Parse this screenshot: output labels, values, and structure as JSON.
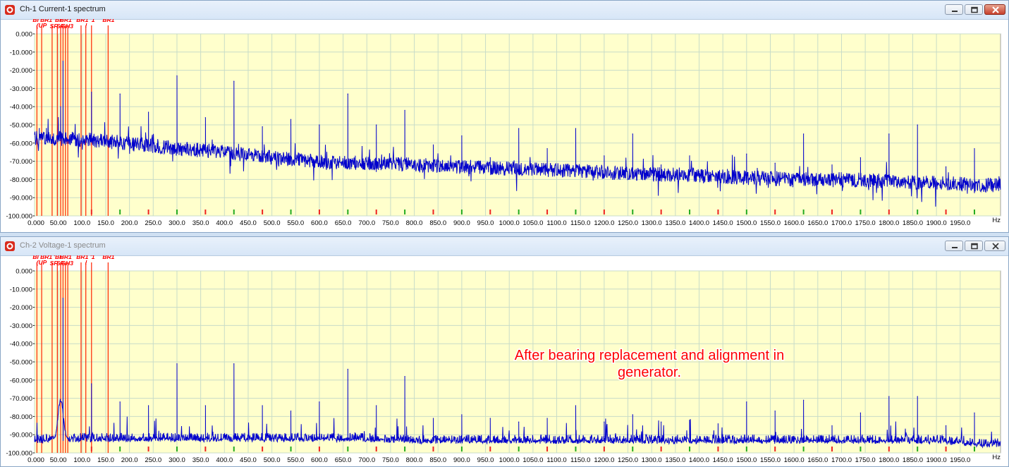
{
  "windows": [
    {
      "title": "Ch-1 Current-1 spectrum",
      "active": true,
      "controls": {
        "minimize_icon": "minimize-icon",
        "maximize_icon": "maximize-icon",
        "close_icon": "close-icon"
      }
    },
    {
      "title": "Ch-2 Voltage-1 spectrum",
      "active": false,
      "controls": {
        "minimize_icon": "minimize-icon",
        "maximize_icon": "maximize-icon",
        "close_icon": "close-icon"
      }
    }
  ],
  "annotation": {
    "line1": "After bearing replacement and alignment in",
    "line2": "generator."
  },
  "colors": {
    "plot_background": "#ffffcc",
    "trace": "#0000cc",
    "grid": "#c8dcc8",
    "marker_lines": "#ff2200",
    "marker_labels": "#ff0000",
    "tick_red": "#ee2222",
    "tick_green": "#22aa22",
    "annotation": "#ff0000"
  },
  "chart_data": [
    {
      "type": "line",
      "name": "Ch-1 Current-1 spectrum",
      "xlabel": "Hz",
      "ylabel": "",
      "xlim": [
        0,
        2035
      ],
      "ylim": [
        -100,
        0
      ],
      "y_ticks": [
        "0.000",
        "-10.000",
        "-20.000",
        "-30.000",
        "-40.000",
        "-50.000",
        "-60.000",
        "-70.000",
        "-80.000",
        "-90.000",
        "-100.000"
      ],
      "x_ticks": [
        "0.000",
        "50.00",
        "100.0",
        "150.0",
        "200.0",
        "250.0",
        "300.0",
        "350.0",
        "400.0",
        "450.0",
        "500.0",
        "550.0",
        "600.0",
        "650.0",
        "700.0",
        "750.0",
        "800.0",
        "850.0",
        "900.0",
        "950.0",
        "1000.0",
        "1050.0",
        "1100.0",
        "1150.0",
        "1200.0",
        "1250.0",
        "1300.0",
        "1350.0",
        "1400.0",
        "1450.0",
        "1500.0",
        "1550.0",
        "1600.0",
        "1650.0",
        "1700.0",
        "1750.0",
        "1800.0",
        "1850.0",
        "1900.0",
        "1950.0"
      ],
      "grid": true,
      "marker_labels": [
        "BI",
        "BR1",
        "(UP",
        "'BF",
        "BR1",
        "SF",
        "SF",
        "SH3",
        "BR1",
        "!",
        "'1",
        "BR1"
      ],
      "marker_x": [
        5,
        15,
        37,
        48,
        55,
        60,
        65,
        70,
        98,
        108,
        120,
        155
      ],
      "noise_floor": {
        "x": [
          0,
          100,
          200,
          300,
          400,
          500,
          600,
          700,
          800,
          900,
          1000,
          1100,
          1200,
          1300,
          1400,
          1500,
          1600,
          1700,
          1800,
          1900,
          2000,
          2030
        ],
        "y": [
          -57,
          -58,
          -60,
          -63,
          -65,
          -68,
          -70,
          -71,
          -72,
          -73,
          -74,
          -75,
          -76,
          -77,
          -78,
          -79,
          -80,
          -80,
          -81,
          -82,
          -83,
          -83
        ]
      },
      "peaks": {
        "x": [
          10,
          25,
          40,
          50,
          55,
          60,
          120,
          180,
          240,
          300,
          360,
          420,
          480,
          540,
          600,
          660,
          720,
          780,
          840,
          900,
          960,
          1020,
          1080,
          1140,
          1200,
          1260,
          1320,
          1380,
          1440,
          1500,
          1560,
          1620,
          1680,
          1740,
          1800,
          1860,
          1920,
          1980
        ],
        "y": [
          -52,
          -52,
          -55,
          -46,
          -40,
          -15,
          -32,
          -33,
          -43,
          -23,
          -46,
          -26,
          -51,
          -47,
          -50,
          -33,
          -50,
          -42,
          -61,
          -56,
          -68,
          -52,
          -63,
          -52,
          -67,
          -55,
          -72,
          -67,
          -78,
          -66,
          -71,
          -55,
          -72,
          -68,
          -55,
          -50,
          -73,
          -63
        ]
      },
      "green_ticks_x": [
        180,
        300,
        420,
        540,
        660,
        780,
        900,
        1020,
        1140,
        1260,
        1380,
        1500,
        1620,
        1740,
        1860,
        1980
      ],
      "red_ticks_x": [
        120,
        240,
        360,
        480,
        600,
        720,
        840,
        960,
        1080,
        1200,
        1320,
        1440,
        1560,
        1680,
        1800,
        1920
      ]
    },
    {
      "type": "line",
      "name": "Ch-2 Voltage-1 spectrum",
      "xlabel": "Hz",
      "ylabel": "",
      "xlim": [
        0,
        2035
      ],
      "ylim": [
        -100,
        0
      ],
      "y_ticks": [
        "0.000",
        "-10.000",
        "-20.000",
        "-30.000",
        "-40.000",
        "-50.000",
        "-60.000",
        "-70.000",
        "-80.000",
        "-90.000",
        "-100.000"
      ],
      "x_ticks": [
        "0.000",
        "50.00",
        "100.0",
        "150.0",
        "200.0",
        "250.0",
        "300.0",
        "350.0",
        "400.0",
        "450.0",
        "500.0",
        "550.0",
        "600.0",
        "650.0",
        "700.0",
        "750.0",
        "800.0",
        "850.0",
        "900.0",
        "950.0",
        "1000.0",
        "1050.0",
        "1100.0",
        "1150.0",
        "1200.0",
        "1250.0",
        "1300.0",
        "1350.0",
        "1400.0",
        "1450.0",
        "1500.0",
        "1550.0",
        "1600.0",
        "1650.0",
        "1700.0",
        "1750.0",
        "1800.0",
        "1850.0",
        "1900.0",
        "1950.0"
      ],
      "grid": true,
      "marker_labels": [
        "BI",
        "BR1",
        "(UP",
        "'BF",
        "BR1",
        "SF",
        "SF",
        "SH3",
        "BR1",
        "!",
        "'1",
        "BR1"
      ],
      "marker_x": [
        5,
        15,
        37,
        48,
        55,
        60,
        65,
        70,
        98,
        108,
        120,
        155
      ],
      "noise_floor": {
        "x": [
          0,
          100,
          200,
          300,
          400,
          500,
          600,
          700,
          800,
          900,
          1000,
          1100,
          1200,
          1300,
          1400,
          1500,
          1600,
          1700,
          1800,
          1900,
          2000,
          2030
        ],
        "y": [
          -94,
          -93,
          -93,
          -93,
          -93,
          -93,
          -93,
          -93,
          -94,
          -94,
          -94,
          -94,
          -94,
          -94,
          -94,
          -94,
          -94,
          -94,
          -94,
          -94,
          -96,
          -96
        ]
      },
      "peaks": {
        "x": [
          60,
          120,
          180,
          240,
          300,
          360,
          420,
          480,
          540,
          600,
          660,
          720,
          780,
          840,
          900,
          960,
          1020,
          1080,
          1140,
          1200,
          1260,
          1320,
          1380,
          1440,
          1500,
          1560,
          1620,
          1680,
          1740,
          1800,
          1860,
          1920,
          1980
        ],
        "y": [
          -15,
          -62,
          -72,
          -74,
          -51,
          -74,
          -51,
          -74,
          -77,
          -72,
          -54,
          -74,
          -58,
          -81,
          -79,
          -81,
          -83,
          -81,
          -74,
          -83,
          -79,
          -83,
          -82,
          -84,
          -72,
          -77,
          -71,
          -85,
          -78,
          -69,
          -69,
          -85,
          -78
        ]
      },
      "hump": {
        "center": 55,
        "width": 8,
        "peak": -71
      },
      "green_ticks_x": [
        180,
        300,
        420,
        540,
        660,
        780,
        900,
        1020,
        1140,
        1260,
        1380,
        1500,
        1620,
        1740,
        1860,
        1980
      ],
      "red_ticks_x": [
        120,
        240,
        360,
        480,
        600,
        720,
        840,
        960,
        1080,
        1200,
        1320,
        1440,
        1560,
        1680,
        1800,
        1920
      ]
    }
  ]
}
